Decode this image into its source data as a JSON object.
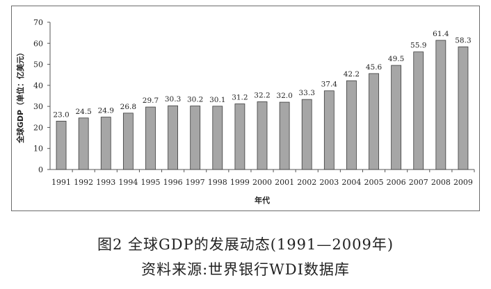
{
  "chart_data": {
    "type": "bar",
    "categories": [
      "1991",
      "1992",
      "1993",
      "1994",
      "1995",
      "1996",
      "1997",
      "1998",
      "1999",
      "2000",
      "2001",
      "2002",
      "2003",
      "2004",
      "2005",
      "2006",
      "2007",
      "2008",
      "2009"
    ],
    "values": [
      23.0,
      24.5,
      24.9,
      26.8,
      29.7,
      30.3,
      30.2,
      30.1,
      31.2,
      32.2,
      32.0,
      33.3,
      37.4,
      42.2,
      45.6,
      49.5,
      55.9,
      61.4,
      58.3
    ],
    "value_labels": [
      "23.0",
      "24.5",
      "24.9",
      "26.8",
      "29.7",
      "30.3",
      "30.2",
      "30.1",
      "31.2",
      "32.2",
      "32.0",
      "33.3",
      "37.4",
      "42.2",
      "45.6",
      "49.5",
      "55.9",
      "61.4",
      "58.3"
    ],
    "ylim": [
      0,
      70
    ],
    "yticks": [
      "0",
      "10",
      "20",
      "30",
      "40",
      "50",
      "60",
      "70"
    ],
    "xlabel": "年代",
    "ylabel": "全球GDP（单位：亿美元）",
    "grid": false,
    "bar_color": "#a6a6a6",
    "bar_edge_color": "#3a3a3a"
  },
  "caption": {
    "title": "图2 全球GDP的发展动态(1991—2009年)",
    "source": "资料来源:世界银行WDI数据库"
  }
}
